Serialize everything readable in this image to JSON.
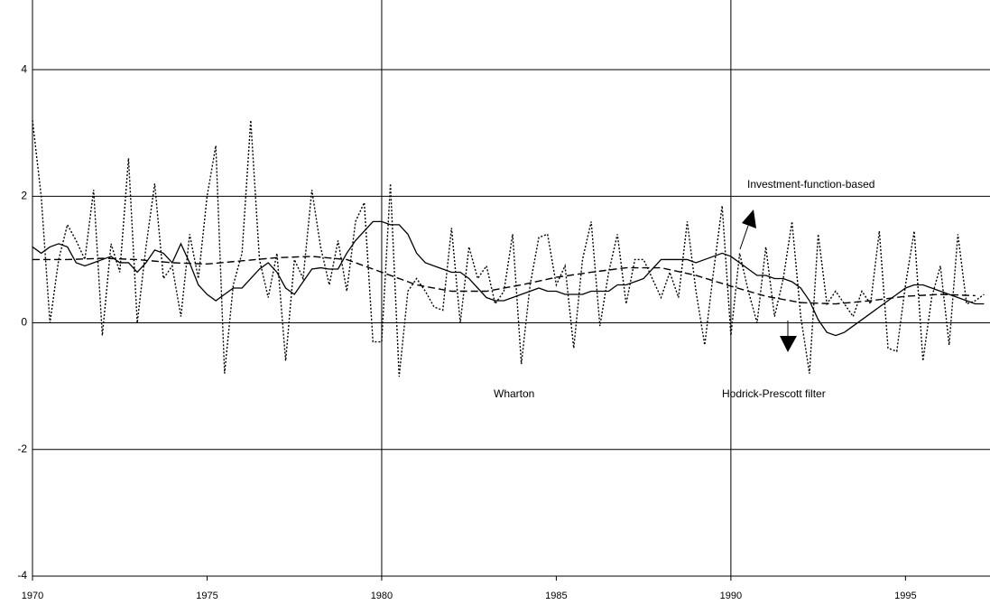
{
  "chart_data": {
    "type": "line",
    "x": [
      1970,
      1970.25,
      1970.5,
      1970.75,
      1971,
      1971.25,
      1971.5,
      1971.75,
      1972,
      1972.25,
      1972.5,
      1972.75,
      1973,
      1973.25,
      1973.5,
      1973.75,
      1974,
      1974.25,
      1974.5,
      1974.75,
      1975,
      1975.25,
      1975.5,
      1975.75,
      1976,
      1976.25,
      1976.5,
      1976.75,
      1977,
      1977.25,
      1977.5,
      1977.75,
      1978,
      1978.25,
      1978.5,
      1978.75,
      1979,
      1979.25,
      1979.5,
      1979.75,
      1980,
      1980.25,
      1980.5,
      1980.75,
      1981,
      1981.25,
      1981.5,
      1981.75,
      1982,
      1982.25,
      1982.5,
      1982.75,
      1983,
      1983.25,
      1983.5,
      1983.75,
      1984,
      1984.25,
      1984.5,
      1984.75,
      1985,
      1985.25,
      1985.5,
      1985.75,
      1986,
      1986.25,
      1986.5,
      1986.75,
      1987,
      1987.25,
      1987.5,
      1987.75,
      1988,
      1988.25,
      1988.5,
      1988.75,
      1989,
      1989.25,
      1989.5,
      1989.75,
      1990,
      1990.25,
      1990.5,
      1990.75,
      1991,
      1991.25,
      1991.5,
      1991.75,
      1992,
      1992.25,
      1992.5,
      1992.75,
      1993,
      1993.25,
      1993.5,
      1993.75,
      1994,
      1994.25,
      1994.5,
      1994.75,
      1995,
      1995.25,
      1995.5,
      1995.75,
      1996,
      1996.25,
      1996.5,
      1996.75,
      1997,
      1997.25
    ],
    "series": [
      {
        "name": "Wharton",
        "color": "#000000",
        "dash": "dotted",
        "values": [
          3.2,
          2.0,
          0.0,
          1.0,
          1.55,
          1.3,
          1.0,
          2.1,
          -0.2,
          1.25,
          0.8,
          2.6,
          0.0,
          1.2,
          2.2,
          0.7,
          0.9,
          0.1,
          1.4,
          0.7,
          2.0,
          2.8,
          -0.8,
          0.6,
          1.1,
          3.2,
          1.0,
          0.4,
          1.1,
          -0.6,
          1.0,
          0.7,
          2.1,
          1.2,
          0.6,
          1.3,
          0.5,
          1.6,
          1.9,
          -0.3,
          -0.3,
          2.2,
          -0.85,
          0.5,
          0.7,
          0.5,
          0.25,
          0.2,
          1.5,
          0.0,
          1.2,
          0.7,
          0.9,
          0.3,
          0.5,
          1.4,
          -0.65,
          0.6,
          1.35,
          1.4,
          0.6,
          0.9,
          -0.4,
          1.0,
          1.6,
          -0.05,
          0.8,
          1.4,
          0.3,
          1.0,
          1.0,
          0.7,
          0.4,
          0.8,
          0.4,
          1.6,
          0.5,
          -0.35,
          0.8,
          1.85,
          -0.2,
          1.1,
          0.5,
          0.0,
          1.2,
          0.1,
          0.7,
          1.6,
          0.1,
          -0.8,
          1.4,
          0.3,
          0.5,
          0.3,
          0.1,
          0.5,
          0.3,
          1.45,
          -0.4,
          -0.45,
          0.6,
          1.45,
          -0.6,
          0.4,
          0.9,
          -0.35,
          1.4,
          0.3,
          0.35,
          0.45
        ]
      },
      {
        "name": "Investment-function-based",
        "color": "#000000",
        "dash": "solid",
        "values": [
          1.2,
          1.1,
          1.2,
          1.25,
          1.2,
          0.95,
          0.9,
          0.95,
          1.0,
          1.05,
          0.95,
          0.95,
          0.8,
          0.95,
          1.15,
          1.1,
          0.95,
          1.25,
          0.95,
          0.6,
          0.45,
          0.35,
          0.45,
          0.55,
          0.55,
          0.7,
          0.85,
          0.95,
          0.8,
          0.55,
          0.45,
          0.65,
          0.85,
          0.87,
          0.85,
          0.85,
          1.1,
          1.3,
          1.45,
          1.6,
          1.6,
          1.55,
          1.55,
          1.4,
          1.1,
          0.95,
          0.9,
          0.85,
          0.8,
          0.8,
          0.7,
          0.55,
          0.4,
          0.35,
          0.35,
          0.4,
          0.45,
          0.5,
          0.55,
          0.5,
          0.5,
          0.45,
          0.45,
          0.45,
          0.5,
          0.5,
          0.5,
          0.6,
          0.6,
          0.65,
          0.7,
          0.85,
          1.0,
          1.0,
          1.0,
          1.0,
          0.95,
          1.0,
          1.05,
          1.1,
          1.05,
          0.95,
          0.85,
          0.75,
          0.75,
          0.7,
          0.7,
          0.65,
          0.55,
          0.35,
          0.05,
          -0.15,
          -0.2,
          -0.15,
          -0.05,
          0.05,
          0.15,
          0.25,
          0.35,
          0.45,
          0.55,
          0.6,
          0.6,
          0.55,
          0.5,
          0.45,
          0.4,
          0.35,
          0.3,
          0.3
        ]
      },
      {
        "name": "Hodrick-Prescott filter",
        "color": "#000000",
        "dash": "dashed",
        "x": [
          1970,
          1971,
          1972,
          1973,
          1974,
          1975,
          1976,
          1977,
          1978,
          1979,
          1980,
          1981,
          1982,
          1983,
          1984,
          1985,
          1986,
          1987,
          1988,
          1989,
          1990,
          1991,
          1992,
          1993,
          1994,
          1995,
          1996,
          1997
        ],
        "values": [
          1.0,
          1.0,
          1.02,
          1.0,
          0.95,
          0.93,
          0.98,
          1.03,
          1.05,
          1.0,
          0.8,
          0.6,
          0.5,
          0.5,
          0.6,
          0.72,
          0.8,
          0.87,
          0.87,
          0.75,
          0.58,
          0.42,
          0.32,
          0.3,
          0.35,
          0.42,
          0.45,
          0.43
        ]
      }
    ],
    "xlim": [
      1970,
      1997.42
    ],
    "xticks": [
      1970,
      1975,
      1980,
      1985,
      1990,
      1995
    ],
    "xgrid": [
      1980,
      1990
    ],
    "ylim": [
      -4,
      5.1
    ],
    "yticks": [
      -4,
      -2,
      0,
      2,
      4
    ],
    "grid": true
  }
}
